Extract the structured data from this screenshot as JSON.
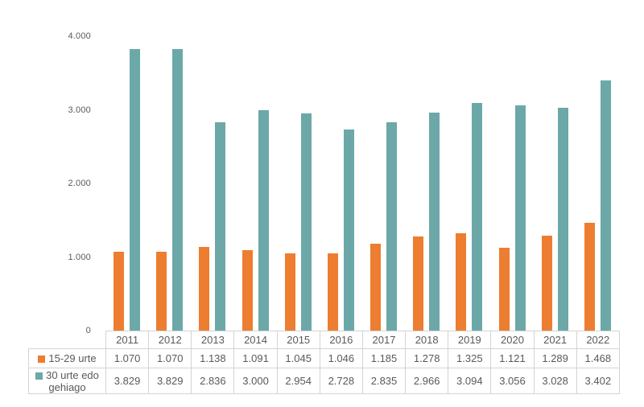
{
  "chart_data": {
    "type": "bar",
    "title": "",
    "xlabel": "",
    "ylabel": "",
    "categories": [
      "2011",
      "2012",
      "2013",
      "2014",
      "2015",
      "2016",
      "2017",
      "2018",
      "2019",
      "2020",
      "2021",
      "2022"
    ],
    "series": [
      {
        "name": "15-29 urte",
        "color": "#ED7D31",
        "values": [
          1070,
          1070,
          1138,
          1091,
          1045,
          1046,
          1185,
          1278,
          1325,
          1121,
          1289,
          1468
        ],
        "labels": [
          "1.070",
          "1.070",
          "1.138",
          "1.091",
          "1.045",
          "1.046",
          "1.185",
          "1.278",
          "1.325",
          "1.121",
          "1.289",
          "1.468"
        ]
      },
      {
        "name": "30 urte edo gehiago",
        "color": "#6CA8A8",
        "values": [
          3829,
          3829,
          2836,
          3000,
          2954,
          2728,
          2835,
          2966,
          3094,
          3056,
          3028,
          3402
        ],
        "labels": [
          "3.829",
          "3.829",
          "2.836",
          "3.000",
          "2.954",
          "2.728",
          "2.835",
          "2.966",
          "3.094",
          "3.056",
          "3.028",
          "3.402"
        ]
      }
    ],
    "ylim": [
      0,
      4000
    ],
    "y_ticks": [
      {
        "value": 0,
        "label": "0"
      },
      {
        "value": 1000,
        "label": "1.000"
      },
      {
        "value": 2000,
        "label": "2.000"
      },
      {
        "value": 3000,
        "label": "3.000"
      },
      {
        "value": 4000,
        "label": "4.000"
      }
    ],
    "grid": false,
    "legend_position": "table-left"
  },
  "colors": {
    "series_orange": "#ED7D31",
    "series_teal": "#6CA8A8",
    "text": "#595959",
    "table_border": "#D4D4D4"
  }
}
